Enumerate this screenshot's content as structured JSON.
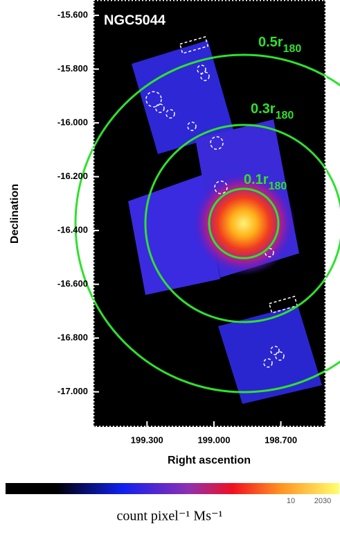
{
  "chart_data": {
    "type": "image",
    "title": "NGC5044",
    "xlabel": "Right ascention",
    "ylabel": "Declination",
    "xlim": [
      199.54,
      198.5
    ],
    "ylim": [
      -17.13,
      -15.543
    ],
    "xticks": [
      {
        "value": 199.3,
        "label": "199.300"
      },
      {
        "value": 199.0,
        "label": "199.000"
      },
      {
        "value": 198.7,
        "label": "198.700"
      }
    ],
    "yticks": [
      {
        "value": -15.6,
        "label": "-15.600"
      },
      {
        "value": -15.8,
        "label": "-15.800"
      },
      {
        "value": -16.0,
        "label": "-16.000"
      },
      {
        "value": -16.2,
        "label": "-16.200"
      },
      {
        "value": -16.4,
        "label": "-16.400"
      },
      {
        "value": -16.6,
        "label": "-16.600"
      },
      {
        "value": -16.8,
        "label": "-16.800"
      },
      {
        "value": -17.0,
        "label": "-17.000"
      }
    ],
    "annotations": [
      {
        "text": "0.5r",
        "sub": "180"
      },
      {
        "text": "0.3r",
        "sub": "180"
      },
      {
        "text": "0.1r",
        "sub": "180"
      }
    ],
    "colorbar": {
      "ticks": [
        10,
        2030
      ],
      "label": "count pixel⁻¹ Ms⁻¹"
    }
  }
}
